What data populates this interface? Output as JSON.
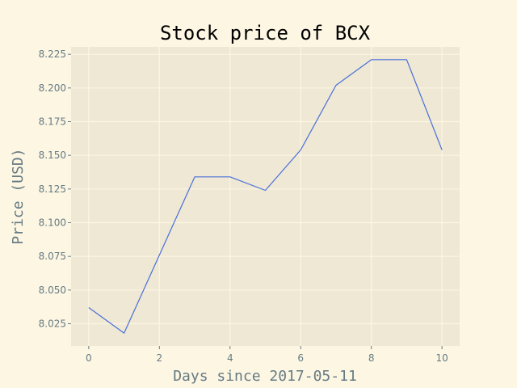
{
  "chart_data": {
    "type": "line",
    "title": "Stock price of BCX",
    "xlabel": "Days since 2017-05-11",
    "ylabel": "Price (USD)",
    "x": [
      0,
      1,
      2,
      3,
      4,
      5,
      6,
      7,
      8,
      9,
      10
    ],
    "series": [
      {
        "values": [
          8.037,
          8.018,
          8.076,
          8.134,
          8.134,
          8.124,
          8.154,
          8.202,
          8.221,
          8.221,
          8.154
        ]
      }
    ],
    "xlim": [
      -0.5,
      10.5
    ],
    "ylim": [
      8.0085,
      8.2305
    ],
    "xticks": [
      0,
      2,
      4,
      6,
      8,
      10
    ],
    "xtick_labels": [
      "0",
      "2",
      "4",
      "6",
      "8",
      "10"
    ],
    "yticks": [
      8.025,
      8.05,
      8.075,
      8.1,
      8.125,
      8.15,
      8.175,
      8.2,
      8.225
    ],
    "ytick_labels": [
      "8.025",
      "8.050",
      "8.075",
      "8.100",
      "8.125",
      "8.150",
      "8.175",
      "8.200",
      "8.225"
    ],
    "grid": true,
    "legend": "none",
    "colors": {
      "background": "#fdf6e3",
      "plot_area": "#eee8d5",
      "grid": "#fdf6e3",
      "line": "#4a6fd8",
      "tick_text": "#657b83"
    }
  }
}
